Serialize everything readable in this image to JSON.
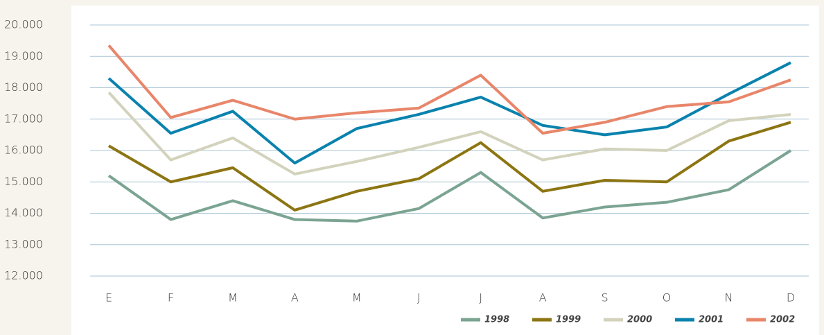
{
  "chart_data": {
    "type": "line",
    "categories": [
      "E",
      "F",
      "M",
      "A",
      "M",
      "J",
      "J",
      "A",
      "S",
      "O",
      "N",
      "D"
    ],
    "series": [
      {
        "name": "1998",
        "color": "#7ba492",
        "values": [
          15200,
          13800,
          14400,
          13800,
          13750,
          14150,
          15300,
          13850,
          14200,
          14350,
          14750,
          16000
        ]
      },
      {
        "name": "1999",
        "color": "#8c7512",
        "values": [
          16150,
          15000,
          15450,
          14100,
          14700,
          15100,
          16250,
          14700,
          15050,
          15000,
          16300,
          16900
        ]
      },
      {
        "name": "2000",
        "color": "#d3d3bd",
        "values": [
          17850,
          15700,
          16400,
          15250,
          15650,
          16100,
          16600,
          15700,
          16050,
          16000,
          16950,
          17150
        ]
      },
      {
        "name": "2001",
        "color": "#0a82ad",
        "values": [
          18300,
          16550,
          17250,
          15600,
          16700,
          17150,
          17700,
          16800,
          16500,
          16750,
          17800,
          18800
        ]
      },
      {
        "name": "2002",
        "color": "#e8866a",
        "values": [
          19350,
          17050,
          17600,
          17000,
          17200,
          17350,
          18400,
          16550,
          16900,
          17400,
          17550,
          18250
        ]
      }
    ],
    "ylim": [
      12000,
      20000
    ],
    "yticks": [
      {
        "value": 12000,
        "label": "12.000"
      },
      {
        "value": 13000,
        "label": "13.000"
      },
      {
        "value": 14000,
        "label": "14.000"
      },
      {
        "value": 15000,
        "label": "15.000"
      },
      {
        "value": 16000,
        "label": "16.000"
      },
      {
        "value": 17000,
        "label": "17.000"
      },
      {
        "value": 18000,
        "label": "18.000"
      },
      {
        "value": 19000,
        "label": "19.000"
      },
      {
        "value": 20000,
        "label": "20.000"
      }
    ],
    "grid": true,
    "legend": "bottom-right"
  }
}
